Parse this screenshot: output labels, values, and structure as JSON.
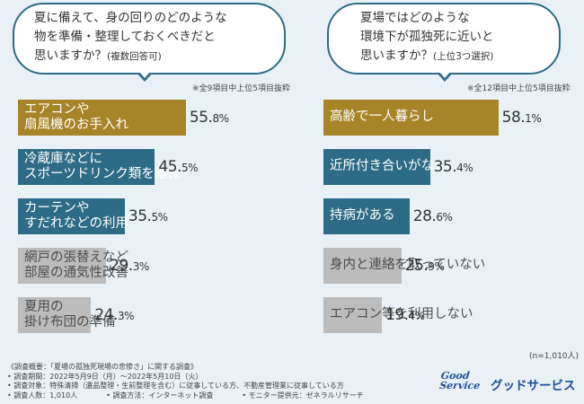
{
  "colors": {
    "top": "#a88428",
    "teal": "#2d6b86",
    "gray": "#bcbcbc",
    "background": "#e9f1f6"
  },
  "left": {
    "question": [
      "夏に備えて、身の回りのどのような",
      "物を準備・整理しておくべきだと",
      "思いますか？"
    ],
    "question_note": "(複数回答可)",
    "note": "※全9項目中上位5項目抜粋"
  },
  "right": {
    "question": [
      "夏場ではどのような",
      "環境下が孤独死に近いと",
      "思いますか？"
    ],
    "question_note": "(上位3つ選択)",
    "note": "※全12項目中上位5項目抜粋",
    "sample": "(n=1,010人)"
  },
  "chart_data": [
    {
      "type": "bar",
      "title": "夏に備えて、身の回りのどのような物を準備・整理しておくべきだと思いますか？(複数回答可)",
      "categories": [
        "エアコンや扇風機のお手入れ",
        "冷蔵庫などにスポーツドリンク類を確保",
        "カーテンやすだれなどの利用",
        "網戸の張替えなど部屋の通気性改善",
        "夏用の掛け布団の準備"
      ],
      "label_lines": [
        [
          "エアコンや",
          "扇風機のお手入れ"
        ],
        [
          "冷蔵庫などに",
          "スポーツドリンク類を確保"
        ],
        [
          "カーテンや",
          "すだれなどの利用"
        ],
        [
          "網戸の張替えなど",
          "部屋の通気性改善"
        ],
        [
          "夏用の",
          "掛け布団の準備"
        ]
      ],
      "values": [
        55.8,
        45.5,
        35.5,
        29.3,
        24.3
      ],
      "unit": "%",
      "colors": [
        "top",
        "teal",
        "teal",
        "gray",
        "gray"
      ]
    },
    {
      "type": "bar",
      "title": "夏場ではどのような環境下が孤独死に近いと思いますか？(上位3つ選択)",
      "categories": [
        "高齢で一人暮らし",
        "近所付き合いがない",
        "持病がある",
        "身内と連絡を取っていない",
        "エアコン等を利用しない"
      ],
      "label_lines": [
        [
          "高齢で一人暮らし"
        ],
        [
          "近所付き合いがない"
        ],
        [
          "持病がある"
        ],
        [
          "身内と連絡を取っていない"
        ],
        [
          "エアコン等を利用しない"
        ]
      ],
      "values": [
        58.1,
        35.4,
        28.6,
        25.9,
        19.4
      ],
      "unit": "%",
      "colors": [
        "top",
        "teal",
        "teal",
        "gray",
        "gray"
      ]
    }
  ],
  "footer": {
    "lines": [
      "《調査概要：「夏場の孤独死現場の悲惨さ」に関する調査》",
      "• 調査期間：2022年5月9日（月）～2022年5月10日（火）",
      "• 調査対象：特殊清掃（遺品整理・生前整理を含む）に従事している方、不動産管理業に従事している方",
      "• 調査人数：1,010人　　　　• 調査方法：インターネット調査　　　　• モニター提供元：ゼネラルリサーチ"
    ]
  },
  "logo": {
    "text_en_1": "Good",
    "text_en_2": "Service",
    "text_jp": "グッドサービス"
  }
}
